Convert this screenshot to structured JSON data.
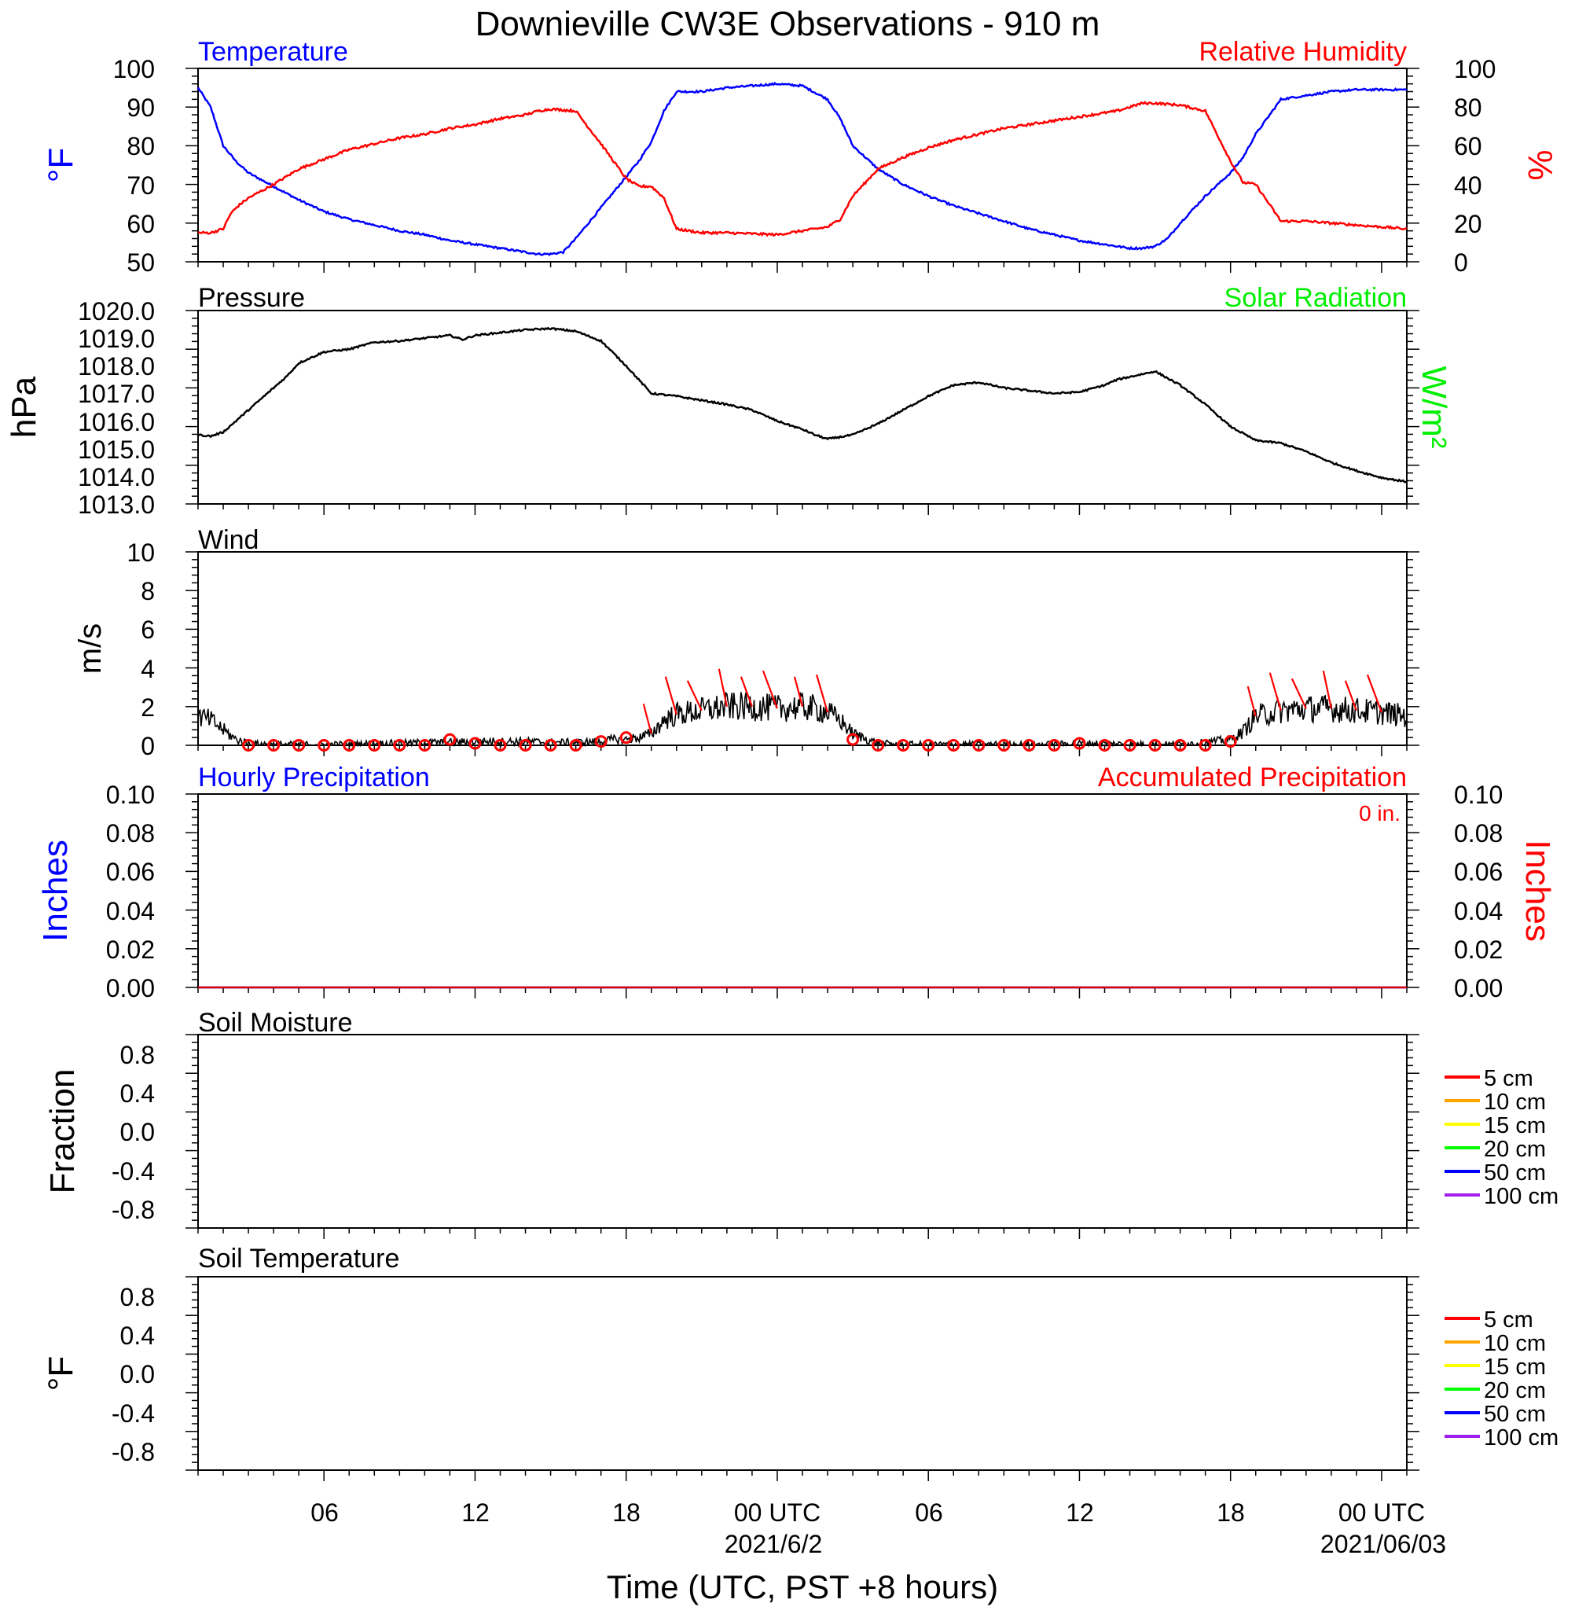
{
  "title": "Downieville CW3E Observations - 910 m",
  "colors": {
    "blue": "#0000ff",
    "red": "#ff0000",
    "green": "#00ee00",
    "black": "#000000"
  },
  "x_axis": {
    "label": "Time (UTC, PST +8 hours)",
    "range_hours": [
      0,
      48
    ],
    "major_ticks": [
      {
        "h": 5,
        "label": "06"
      },
      {
        "h": 11,
        "label": "12"
      },
      {
        "h": 17,
        "label": "18"
      },
      {
        "h": 23,
        "label": "00 UTC"
      },
      {
        "h": 29,
        "label": "06"
      },
      {
        "h": 35,
        "label": "12"
      },
      {
        "h": 41,
        "label": "18"
      },
      {
        "h": 47,
        "label": "00 UTC"
      }
    ],
    "date_labels": [
      {
        "h": 23,
        "label": "2021/6/2"
      },
      {
        "h": 47,
        "label": "2021/06/03"
      }
    ]
  },
  "panels": {
    "temp_rh": {
      "left_title": "Temperature",
      "right_title": "Relative Humidity",
      "left_unit": "°F",
      "right_unit": "%",
      "left_ticks": [
        "50",
        "60",
        "70",
        "80",
        "90",
        "100"
      ],
      "right_ticks": [
        "0",
        "20",
        "40",
        "60",
        "80",
        "100"
      ]
    },
    "pressure": {
      "left_title": "Pressure",
      "right_title": "Solar Radiation",
      "left_unit": "hPa",
      "right_unit": "W/m²",
      "left_ticks": [
        "1013.0",
        "1014.0",
        "1015.0",
        "1016.0",
        "1017.0",
        "1018.0",
        "1019.0",
        "1020.0"
      ]
    },
    "wind": {
      "left_title": "Wind",
      "left_unit": "m/s",
      "left_ticks": [
        "0",
        "2",
        "4",
        "6",
        "8",
        "10"
      ]
    },
    "precip": {
      "left_title": "Hourly Precipitation",
      "right_title": "Accumulated Precipitation",
      "accum_label": "0 in.",
      "left_unit": "Inches",
      "right_unit": "Inches",
      "left_ticks": [
        "0.00",
        "0.02",
        "0.04",
        "0.06",
        "0.08",
        "0.10"
      ],
      "right_ticks": [
        "0.00",
        "0.02",
        "0.04",
        "0.06",
        "0.08",
        "0.10"
      ]
    },
    "soil_moisture": {
      "left_title": "Soil Moisture",
      "left_unit": "Fraction",
      "left_ticks": [
        "-0.8",
        "-0.4",
        "0.0",
        "0.4",
        "0.8"
      ]
    },
    "soil_temp": {
      "left_title": "Soil Temperature",
      "left_unit": "°F",
      "left_ticks": [
        "-0.8",
        "-0.4",
        "0.0",
        "0.4",
        "0.8"
      ]
    }
  },
  "legend": [
    {
      "label": "5 cm",
      "color": "#ff0000"
    },
    {
      "label": "10 cm",
      "color": "#ffa500"
    },
    {
      "label": "15 cm",
      "color": "#ffff00"
    },
    {
      "label": "20 cm",
      "color": "#00ff00"
    },
    {
      "label": "50 cm",
      "color": "#0000ff"
    },
    {
      "label": "100 cm",
      "color": "#a020f0"
    }
  ],
  "chart_data": [
    {
      "type": "line",
      "title": "Temperature",
      "ylabel": "°F",
      "ylim": [
        50,
        100
      ],
      "series": [
        {
          "name": "Temperature",
          "color": "#0000ff",
          "x": [
            0,
            0.5,
            1,
            1.5,
            2,
            3,
            4,
            5,
            6,
            7,
            8,
            9,
            10,
            11,
            12,
            13,
            13.5,
            14,
            14.5,
            15,
            16,
            17,
            17.5,
            18,
            18.5,
            19,
            20,
            21,
            22,
            23,
            24,
            25,
            25.5,
            26,
            27,
            28,
            29,
            30,
            31,
            32,
            33,
            34,
            35,
            36,
            37,
            37.5,
            38,
            38.5,
            39,
            40,
            41,
            41.5,
            42,
            43,
            44,
            45,
            46,
            47,
            48
          ],
          "y": [
            95,
            90,
            80,
            76,
            73,
            69.5,
            66,
            63,
            61,
            59.5,
            58,
            57,
            55.5,
            54.5,
            53.5,
            52.5,
            52,
            52,
            52.5,
            56,
            64,
            72,
            76,
            81,
            89,
            94,
            94,
            95,
            95.5,
            96,
            95.5,
            92,
            87,
            80,
            74,
            70,
            67,
            64.5,
            62.5,
            60.5,
            58.5,
            57,
            55.5,
            54.5,
            53.5,
            53.5,
            54,
            56,
            60,
            67,
            73,
            77,
            83,
            92,
            93,
            94,
            94.5,
            94.5,
            94.5
          ]
        }
      ]
    },
    {
      "type": "line",
      "title": "Relative Humidity",
      "ylabel": "%",
      "ylim": [
        0,
        100
      ],
      "series": [
        {
          "name": "Relative Humidity",
          "color": "#ff0000",
          "x": [
            0,
            0.5,
            1,
            1.3,
            1.6,
            2,
            3,
            4,
            5,
            6,
            7,
            8,
            9,
            10,
            11,
            12,
            13,
            13.5,
            14,
            15,
            16,
            17,
            17.5,
            18,
            18.5,
            19,
            20,
            21,
            22,
            23,
            24,
            25,
            25.5,
            26,
            27,
            28,
            29,
            30,
            31,
            32,
            33,
            34,
            35,
            36,
            36.5,
            37,
            37.5,
            38,
            39,
            40,
            40.5,
            41,
            41.5,
            42,
            43,
            44,
            45,
            46,
            47,
            48
          ],
          "y": [
            15,
            15,
            17,
            25,
            29,
            33,
            40,
            48,
            53,
            58,
            61,
            64,
            66,
            69,
            71,
            74,
            76,
            78,
            79,
            78,
            61,
            43,
            39,
            39,
            33,
            17,
            15,
            15,
            14.5,
            14,
            16,
            18,
            22,
            34,
            48,
            54,
            59,
            63,
            66,
            69,
            71,
            73,
            75,
            77,
            78,
            80,
            82,
            82,
            81,
            78,
            65,
            52,
            41,
            40,
            21,
            21,
            20,
            19,
            18,
            17
          ]
        }
      ]
    },
    {
      "type": "line",
      "title": "Pressure",
      "ylabel": "hPa",
      "ylim": [
        1013,
        1020
      ],
      "series": [
        {
          "name": "Pressure",
          "color": "#000000",
          "x": [
            0,
            0.5,
            1,
            2,
            3,
            3.5,
            4,
            5,
            6,
            7,
            8,
            9,
            10,
            10.5,
            11,
            12,
            13,
            14,
            15,
            16,
            17,
            18,
            19,
            20,
            21,
            22,
            23,
            24,
            24.5,
            25,
            26,
            27,
            28,
            29,
            30,
            31,
            32,
            33,
            34,
            35,
            36,
            36.5,
            37,
            38,
            39,
            40,
            41,
            42,
            43,
            44,
            45,
            46,
            47,
            48
          ],
          "y": [
            1015.5,
            1015.45,
            1015.6,
            1016.4,
            1017.2,
            1017.6,
            1018.1,
            1018.5,
            1018.6,
            1018.85,
            1018.9,
            1019.0,
            1019.1,
            1018.95,
            1019.1,
            1019.2,
            1019.3,
            1019.35,
            1019.25,
            1018.9,
            1018.0,
            1017.0,
            1016.9,
            1016.75,
            1016.6,
            1016.4,
            1016.0,
            1015.7,
            1015.5,
            1015.35,
            1015.5,
            1015.9,
            1016.4,
            1016.9,
            1017.3,
            1017.4,
            1017.2,
            1017.1,
            1017.0,
            1017.05,
            1017.3,
            1017.5,
            1017.6,
            1017.8,
            1017.3,
            1016.6,
            1015.8,
            1015.3,
            1015.2,
            1014.9,
            1014.5,
            1014.2,
            1013.95,
            1013.8
          ]
        }
      ]
    },
    {
      "type": "line",
      "title": "Wind",
      "ylabel": "m/s",
      "ylim": [
        0,
        10
      ],
      "series": [
        {
          "name": "Wind speed",
          "color": "#000000",
          "x": [
            0,
            0.5,
            1,
            1.5,
            2,
            3,
            4,
            5,
            6,
            7,
            8,
            9,
            10,
            11,
            12,
            13,
            14,
            15,
            16,
            16.5,
            17,
            17.5,
            18,
            18.5,
            19,
            20,
            21,
            22,
            23,
            24,
            24.5,
            25,
            25.5,
            26,
            27,
            28,
            29,
            30,
            31,
            32,
            33,
            34,
            35,
            36,
            37,
            38,
            39,
            40,
            41,
            41.5,
            42,
            43,
            44,
            45,
            46,
            47,
            48
          ],
          "y": [
            1.5,
            1.3,
            0.8,
            0.3,
            0.1,
            0.05,
            0.05,
            0.05,
            0.05,
            0.1,
            0.1,
            0.15,
            0.15,
            0.2,
            0.2,
            0.2,
            0.15,
            0.15,
            0.2,
            0.3,
            0.3,
            0.4,
            0.6,
            1.3,
            1.6,
            1.8,
            2.0,
            2.0,
            1.9,
            2.0,
            1.9,
            1.7,
            1.3,
            0.6,
            0.1,
            0.05,
            0.05,
            0.05,
            0.05,
            0.05,
            0.05,
            0.05,
            0.1,
            0.1,
            0.05,
            0.05,
            0.05,
            0.15,
            0.3,
            0.7,
            1.5,
            1.8,
            1.9,
            1.9,
            1.8,
            1.7,
            1.5
          ]
        },
        {
          "name": "Hourly mean",
          "color": "#ff0000",
          "x": [
            2,
            3,
            4,
            5,
            6,
            7,
            8,
            9,
            10,
            11,
            12,
            13,
            14,
            15,
            16,
            17,
            26,
            27,
            28,
            29,
            30,
            31,
            32,
            33,
            34,
            35,
            36,
            37,
            38,
            39,
            40,
            41
          ],
          "y": [
            0,
            0,
            0,
            0,
            0,
            0,
            0,
            0,
            0.3,
            0.1,
            0,
            0,
            0,
            0,
            0.2,
            0.4,
            0.3,
            0,
            0,
            0,
            0,
            0,
            0,
            0,
            0,
            0.1,
            0,
            0,
            0,
            0,
            0,
            0.2
          ]
        }
      ]
    },
    {
      "type": "line",
      "title": "Hourly Precipitation",
      "ylabel": "Inches",
      "ylim": [
        0,
        0.1
      ],
      "series": [
        {
          "name": "Hourly Precipitation",
          "color": "#0000ff",
          "x": [
            0,
            48
          ],
          "y": [
            0,
            0
          ]
        },
        {
          "name": "Accumulated Precipitation",
          "color": "#ff0000",
          "x": [
            0,
            48
          ],
          "y": [
            0,
            0
          ]
        }
      ]
    },
    {
      "type": "line",
      "title": "Soil Moisture",
      "ylabel": "Fraction",
      "ylim": [
        -1,
        1
      ],
      "series": []
    },
    {
      "type": "line",
      "title": "Soil Temperature",
      "ylabel": "°F",
      "ylim": [
        -1,
        1
      ],
      "series": []
    }
  ]
}
